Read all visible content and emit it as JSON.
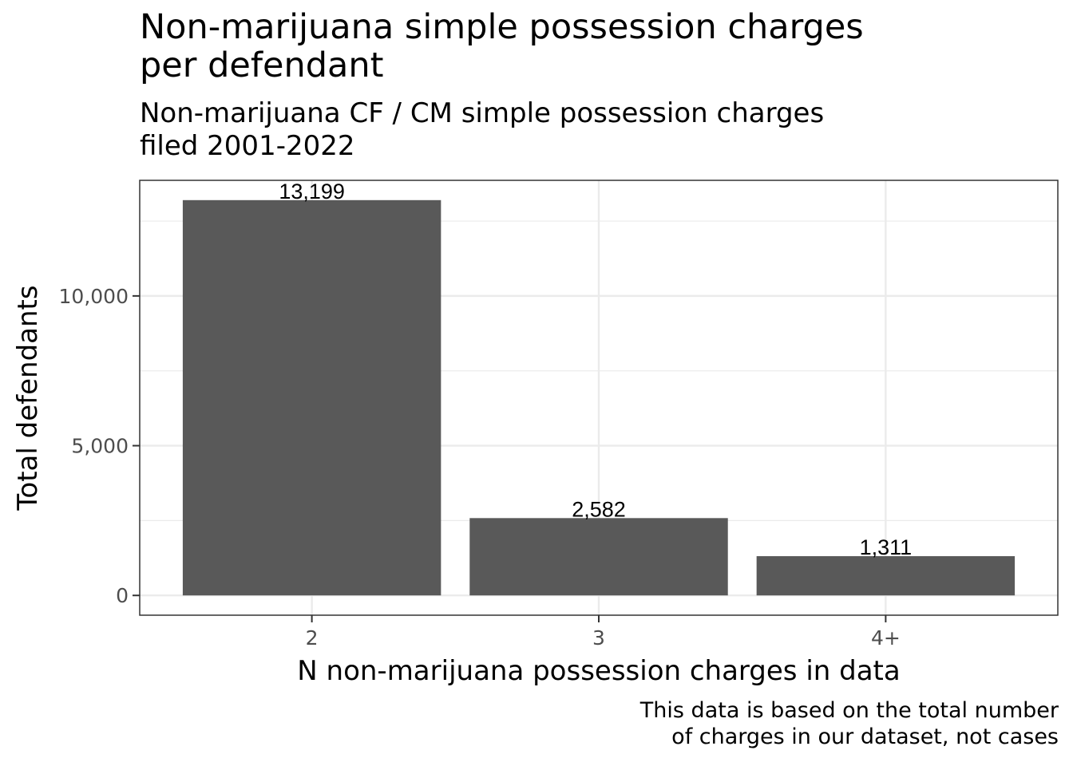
{
  "chart_data": {
    "type": "bar",
    "title_lines": [
      "Non-marijuana simple possession charges",
      "per defendant"
    ],
    "subtitle_lines": [
      "Non-marijuana CF / CM simple possession charges",
      "filed 2001-2022"
    ],
    "xlabel": "N non-marijuana possession charges in data",
    "ylabel": "Total defendants",
    "caption_lines": [
      "This data is based on the total number",
      "of charges in our dataset, not cases"
    ],
    "categories": [
      "2",
      "3",
      "4+"
    ],
    "values": [
      13199,
      2582,
      1311
    ],
    "value_labels": [
      "13,199",
      "2,582",
      "1,311"
    ],
    "yticks": [
      0,
      5000,
      10000
    ],
    "ytick_labels": [
      "0",
      "5,000",
      "10,000"
    ],
    "ylim": [
      -660,
      13860
    ],
    "grid": true,
    "bar_color": "#595959",
    "grid_color": "#ebebeb",
    "legend": "none"
  }
}
